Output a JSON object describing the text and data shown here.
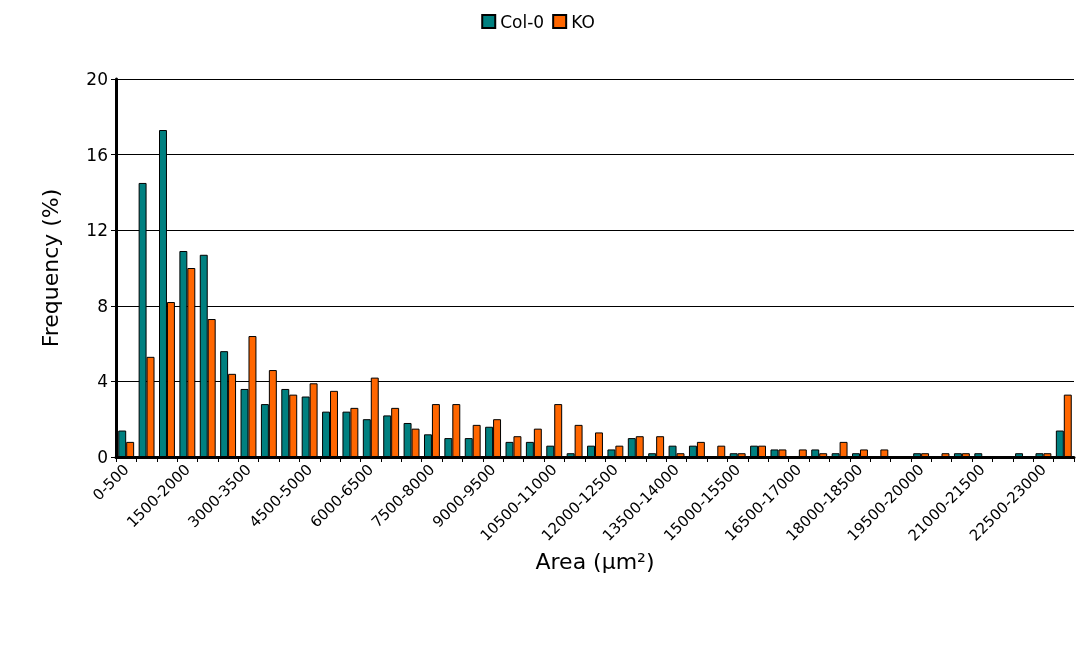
{
  "chart_data": {
    "type": "bar",
    "xlabel": "Area (μm²)",
    "ylabel": "Frequency (%)",
    "categories": [
      "0-500",
      null,
      null,
      "1500-2000",
      null,
      null,
      "3000-3500",
      null,
      null,
      "4500-5000",
      null,
      null,
      "6000-6500",
      null,
      null,
      "7500-8000",
      null,
      null,
      "9000-9500",
      null,
      null,
      "10500-11000",
      null,
      null,
      "12000-12500",
      null,
      null,
      "13500-14000",
      null,
      null,
      "15000-15500",
      null,
      null,
      "16500-17000",
      null,
      null,
      "18000-18500",
      null,
      null,
      "19500-20000",
      null,
      null,
      "21000-21500",
      null,
      null,
      "22500-23000",
      null
    ],
    "series": [
      {
        "name": "Col-0",
        "color": "#008080",
        "values": [
          1.4,
          14.5,
          17.3,
          10.9,
          10.7,
          5.6,
          3.6,
          2.8,
          3.6,
          3.2,
          2.4,
          2.4,
          2.0,
          2.2,
          1.8,
          1.2,
          1.0,
          1.0,
          1.6,
          0.8,
          0.8,
          0.6,
          0.2,
          0.6,
          0.4,
          1.0,
          0.2,
          0.6,
          0.6,
          0,
          0.2,
          0.6,
          0.4,
          0,
          0.4,
          0.2,
          0.2,
          0,
          0,
          0.2,
          0,
          0.2,
          0.2,
          0,
          0.2,
          0.2,
          1.4
        ]
      },
      {
        "name": "KO",
        "color": "#ff6600",
        "values": [
          0.8,
          5.3,
          8.2,
          10.0,
          7.3,
          4.4,
          6.4,
          4.6,
          3.3,
          3.9,
          3.5,
          2.6,
          4.2,
          2.6,
          1.5,
          2.8,
          2.8,
          1.7,
          2.0,
          1.1,
          1.5,
          2.8,
          1.7,
          1.3,
          0.6,
          1.1,
          1.1,
          0.2,
          0.8,
          0.6,
          0.2,
          0.6,
          0.4,
          0.4,
          0.2,
          0.8,
          0.4,
          0.4,
          0,
          0.2,
          0.2,
          0.2,
          0,
          0,
          0,
          0.2,
          3.3
        ]
      }
    ],
    "ylim": [
      0,
      20
    ],
    "yticks": [
      0,
      4,
      8,
      12,
      16,
      20
    ],
    "grid": "y",
    "legend": "top"
  }
}
